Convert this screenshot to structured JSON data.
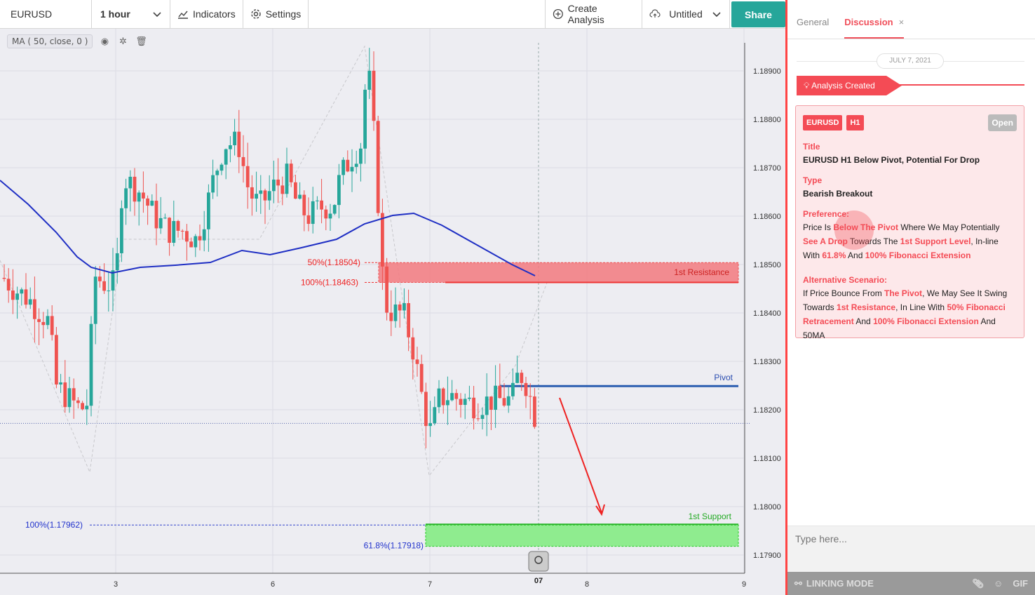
{
  "toolbar": {
    "symbol": "EURUSD",
    "interval": "1 hour",
    "indicators_label": "Indicators",
    "settings_label": "Settings",
    "create_analysis_label": "Create Analysis",
    "untitled_label": "Untitled",
    "share_label": "Share"
  },
  "chart": {
    "ma_legend": "MA ( 50, close, 0 )",
    "price_labels": [
      "1.18900",
      "1.18800",
      "1.18700",
      "1.18600",
      "1.18500",
      "1.18400",
      "1.18300",
      "1.18200",
      "1.18100",
      "1.18000",
      "1.17900"
    ],
    "date_labels": [
      "3",
      "6",
      "7",
      "8",
      "9"
    ],
    "cursor_date": "07",
    "levels": {
      "fib_50": "50%(1.18504)",
      "fib_100_top": "100%(1.18463)",
      "resistance": "1st Resistance",
      "pivot": "Pivot",
      "support": "1st Support",
      "fib_100_bottom": "100%(1.17962)",
      "fib_618": "61.8%(1.17918)"
    },
    "colors": {
      "bull": "#26a69a",
      "bear": "#ef5350",
      "ma": "#1f2fc4",
      "pivot": "#2a5db0",
      "resistance_fill": "#f47a80",
      "support_fill": "#8fec8f"
    }
  },
  "panel": {
    "tabs": [
      "General",
      "Discussion"
    ],
    "active_tab": "Discussion",
    "date": "JULY 7, 2021",
    "analysis_created": "Analysis Created",
    "card": {
      "symbol_badge": "EURUSD",
      "tf_badge": "H1",
      "status": "Open",
      "title_label": "Title",
      "title": "EURUSD H1 Below Pivot, Potential For Drop",
      "type_label": "Type",
      "type": "Bearish Breakout",
      "preference_label": "Preference:",
      "preference": [
        {
          "t": "Price Is ",
          "h": false
        },
        {
          "t": "Below The Pivot",
          "h": true
        },
        {
          "t": " Where We May Potentially ",
          "h": false
        },
        {
          "t": "See A Drop",
          "h": true
        },
        {
          "t": " Towards The ",
          "h": false
        },
        {
          "t": "1st Support Level",
          "h": true
        },
        {
          "t": ", In-line With ",
          "h": false
        },
        {
          "t": "61.8%",
          "h": true
        },
        {
          "t": " And ",
          "h": false
        },
        {
          "t": "100% Fibonacci Extension",
          "h": true
        }
      ],
      "alternative_label": "Alternative Scenario:",
      "alternative": [
        {
          "t": "If Price Bounce From ",
          "h": false
        },
        {
          "t": "The Pivot",
          "h": true
        },
        {
          "t": ", We May See It Swing Towards ",
          "h": false
        },
        {
          "t": "1st Resistance",
          "h": true
        },
        {
          "t": ", In Line With ",
          "h": false
        },
        {
          "t": "50% Fibonacci Retracement",
          "h": true
        },
        {
          "t": " And ",
          "h": false
        },
        {
          "t": "100% Fibonacci Extension",
          "h": true
        },
        {
          "t": " And 50MA",
          "h": false
        }
      ]
    },
    "input_placeholder": "Type here...",
    "linking_mode": "LINKING MODE",
    "gif_label": "GIF"
  }
}
